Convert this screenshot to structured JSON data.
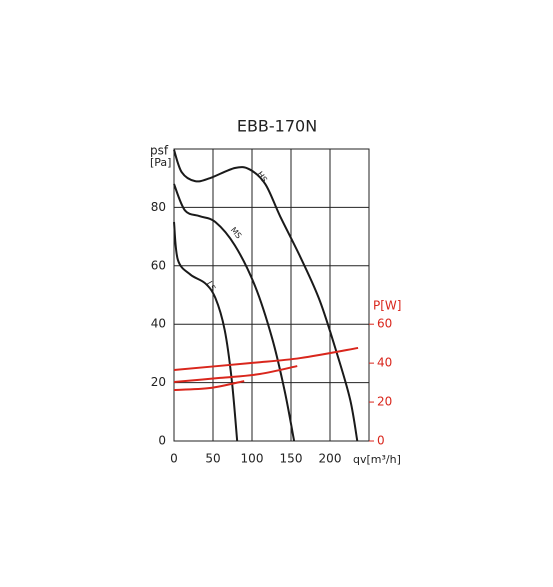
{
  "chart_data": {
    "type": "line",
    "title": "EBB-170N",
    "y_label": "psf",
    "y_unit": "[Pa]",
    "x_label": "qv[m³/h]",
    "y2_label": "P[W]",
    "xlim": [
      0,
      250
    ],
    "xticks": [
      0,
      50,
      100,
      150,
      200
    ],
    "ylim": [
      0,
      100
    ],
    "yticks": [
      0,
      20,
      40,
      60,
      80
    ],
    "y2lim": [
      0,
      150
    ],
    "y2ticks": [
      0,
      20,
      40,
      60
    ],
    "y2_color": "#d9261c",
    "grid": true,
    "series": [
      {
        "name": "HS",
        "color": "#1a1a1a",
        "x": [
          0,
          10,
          27,
          46,
          78,
          97,
          117,
          136,
          162,
          187,
          210,
          226,
          235
        ],
        "values": [
          99.7,
          92,
          89,
          90,
          93.5,
          93,
          88,
          77,
          63,
          48,
          29,
          14,
          0
        ]
      },
      {
        "name": "MS",
        "color": "#1a1a1a",
        "x": [
          0,
          14,
          33,
          53,
          78,
          104,
          126,
          142,
          154
        ],
        "values": [
          88,
          79,
          77,
          75,
          67,
          53,
          35,
          17,
          0
        ]
      },
      {
        "name": "LS",
        "color": "#1a1a1a",
        "x": [
          0,
          5,
          21,
          40,
          53,
          65,
          74,
          81
        ],
        "values": [
          75,
          62,
          57,
          54,
          49,
          38,
          21,
          0
        ]
      },
      {
        "axis": "y2",
        "color": "#d9261c",
        "x": [
          0,
          97,
          162,
          236
        ],
        "values": [
          36.5,
          40,
          42.6,
          47.8
        ]
      },
      {
        "axis": "y2",
        "color": "#d9261c",
        "x": [
          0,
          59,
          110,
          158
        ],
        "values": [
          30.3,
          32.4,
          34.4,
          38.5
        ]
      },
      {
        "axis": "y2",
        "color": "#d9261c",
        "x": [
          0,
          46,
          90
        ],
        "values": [
          26.2,
          27.2,
          30.8
        ]
      }
    ]
  }
}
